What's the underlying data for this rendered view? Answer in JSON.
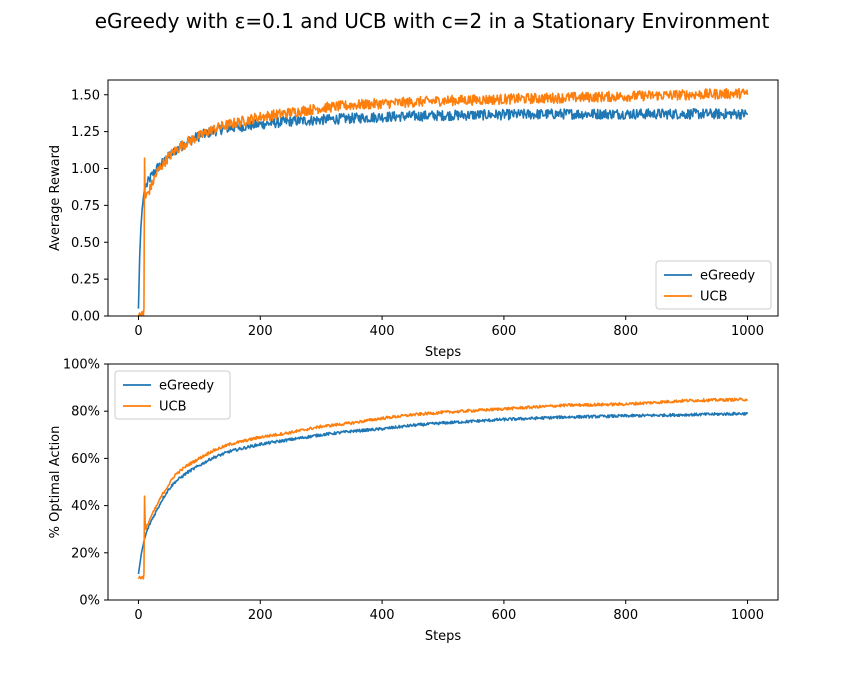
{
  "suptitle": "eGreedy with ε=0.1 and UCB with c=2 in a Stationary Environment",
  "colors": {
    "egreedy": "#1f77b4",
    "ucb": "#ff7f0e"
  },
  "chart_data": [
    {
      "type": "line",
      "title": "",
      "xlabel": "Steps",
      "ylabel": "Average Reward",
      "xlim": [
        -50,
        1050
      ],
      "ylim": [
        0.0,
        1.6
      ],
      "xticks": [
        0,
        200,
        400,
        600,
        800,
        1000
      ],
      "xtick_labels": [
        "0",
        "200",
        "400",
        "600",
        "800",
        "1000"
      ],
      "yticks": [
        0.0,
        0.25,
        0.5,
        0.75,
        1.0,
        1.25,
        1.5
      ],
      "ytick_labels": [
        "0.00",
        "0.25",
        "0.50",
        "0.75",
        "1.00",
        "1.25",
        "1.50"
      ],
      "legend": "lower-right",
      "grid": false,
      "series": [
        {
          "name": "eGreedy",
          "color": "#1f77b4",
          "x": [
            0,
            2,
            4,
            6,
            8,
            10,
            15,
            20,
            30,
            40,
            50,
            60,
            70,
            80,
            90,
            100,
            120,
            140,
            160,
            180,
            200,
            250,
            300,
            350,
            400,
            450,
            500,
            600,
            700,
            800,
            900,
            1000
          ],
          "y": [
            0.05,
            0.4,
            0.6,
            0.72,
            0.8,
            0.86,
            0.9,
            0.94,
            1.0,
            1.04,
            1.08,
            1.12,
            1.15,
            1.18,
            1.2,
            1.22,
            1.25,
            1.27,
            1.28,
            1.29,
            1.3,
            1.32,
            1.33,
            1.34,
            1.35,
            1.355,
            1.36,
            1.365,
            1.37,
            1.37,
            1.37,
            1.37
          ]
        },
        {
          "name": "UCB",
          "color": "#ff7f0e",
          "x": [
            0,
            2,
            4,
            6,
            8,
            9,
            10,
            11,
            12,
            15,
            20,
            30,
            40,
            50,
            60,
            70,
            80,
            90,
            100,
            120,
            140,
            160,
            180,
            200,
            250,
            300,
            350,
            400,
            450,
            500,
            600,
            700,
            800,
            900,
            1000
          ],
          "y": [
            0.0,
            0.02,
            0.0,
            0.03,
            0.0,
            0.05,
            1.07,
            0.82,
            0.8,
            0.83,
            0.87,
            0.97,
            1.03,
            1.08,
            1.12,
            1.15,
            1.18,
            1.2,
            1.22,
            1.26,
            1.29,
            1.31,
            1.33,
            1.35,
            1.38,
            1.41,
            1.43,
            1.44,
            1.45,
            1.46,
            1.47,
            1.48,
            1.49,
            1.5,
            1.51
          ]
        }
      ]
    },
    {
      "type": "line",
      "title": "",
      "xlabel": "Steps",
      "ylabel": "% Optimal Action",
      "xlim": [
        -50,
        1050
      ],
      "ylim": [
        0,
        100
      ],
      "xticks": [
        0,
        200,
        400,
        600,
        800,
        1000
      ],
      "xtick_labels": [
        "0",
        "200",
        "400",
        "600",
        "800",
        "1000"
      ],
      "yticks": [
        0,
        20,
        40,
        60,
        80,
        100
      ],
      "ytick_labels": [
        "0%",
        "20%",
        "40%",
        "60%",
        "80%",
        "100%"
      ],
      "legend": "upper-left",
      "grid": false,
      "series": [
        {
          "name": "eGreedy",
          "color": "#1f77b4",
          "x": [
            0,
            5,
            10,
            15,
            20,
            30,
            40,
            50,
            60,
            80,
            100,
            120,
            150,
            200,
            250,
            300,
            350,
            400,
            450,
            500,
            600,
            700,
            800,
            900,
            1000
          ],
          "y": [
            11,
            20,
            26,
            30,
            33,
            38,
            43,
            47,
            50,
            54,
            57,
            60,
            63,
            66,
            68,
            70,
            71.5,
            72.5,
            74,
            75,
            76.5,
            77.5,
            78,
            78.5,
            79
          ]
        },
        {
          "name": "UCB",
          "color": "#ff7f0e",
          "x": [
            0,
            2,
            4,
            6,
            8,
            9,
            10,
            11,
            12,
            15,
            20,
            30,
            40,
            50,
            60,
            80,
            100,
            120,
            150,
            200,
            250,
            300,
            350,
            400,
            450,
            500,
            600,
            700,
            800,
            900,
            1000
          ],
          "y": [
            9,
            10,
            9,
            10,
            9,
            11,
            44,
            33,
            30,
            32,
            35,
            40,
            45,
            49,
            53,
            57,
            60,
            63,
            66,
            69,
            71,
            73.5,
            75,
            77,
            78.5,
            79.5,
            81,
            82.5,
            83,
            84.5,
            85
          ]
        }
      ]
    }
  ]
}
